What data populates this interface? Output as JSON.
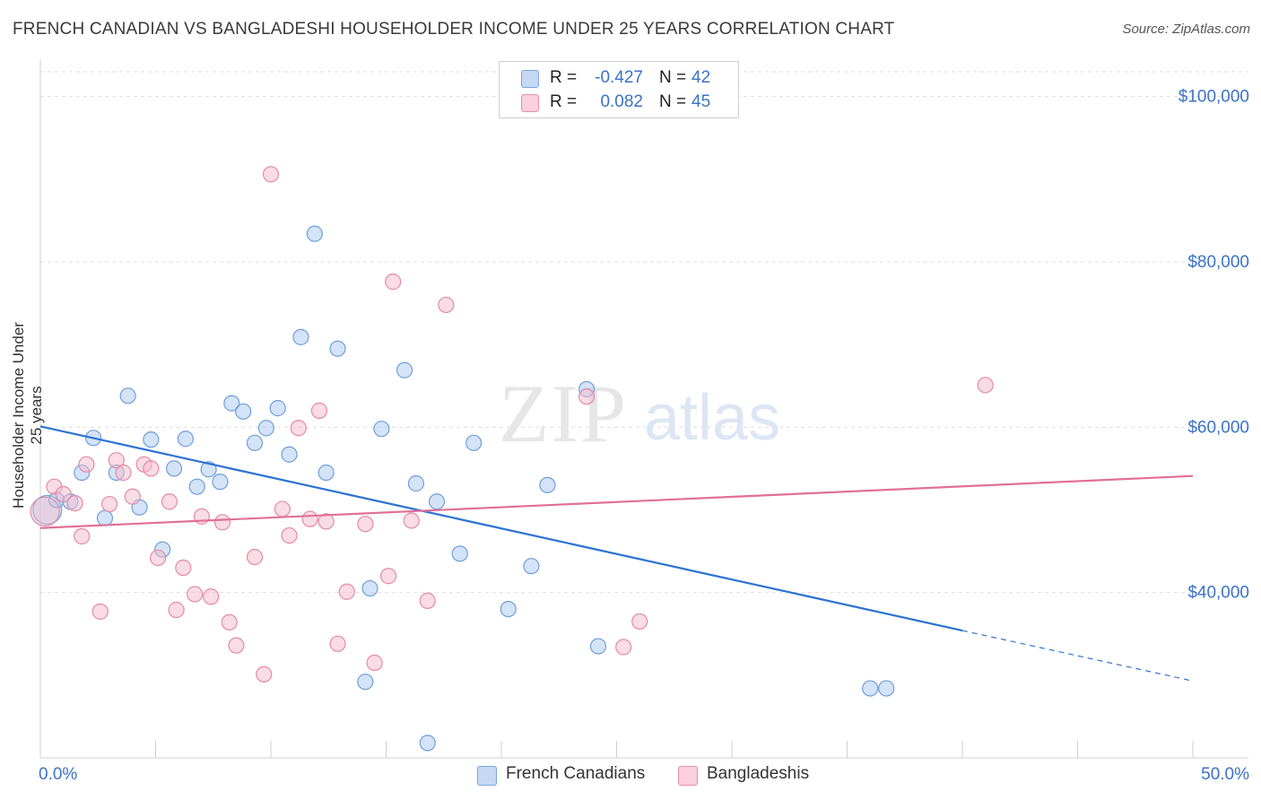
{
  "title": "FRENCH CANADIAN VS BANGLADESHI HOUSEHOLDER INCOME UNDER 25 YEARS CORRELATION CHART",
  "source": "Source: ZipAtlas.com",
  "watermark": {
    "zip": "ZIP",
    "atlas": "atlas"
  },
  "legend": {
    "rows": [
      {
        "r_label": "R =",
        "r_value": "-0.427",
        "n_label": "N =",
        "n_value": "42",
        "color": "#a9c7ef"
      },
      {
        "r_label": "R =",
        "r_value": "0.082",
        "n_label": "N =",
        "n_value": "45",
        "color": "#f5b9cb"
      }
    ]
  },
  "bottom_legend": [
    {
      "label": "French Canadians",
      "color": "#a9c7ef"
    },
    {
      "label": "Bangladeshis",
      "color": "#f5b9cb"
    }
  ],
  "chart_data": {
    "type": "scatter",
    "title": "FRENCH CANADIAN VS BANGLADESHI HOUSEHOLDER INCOME UNDER 25 YEARS CORRELATION CHART",
    "xlabel": "",
    "ylabel": "Householder Income Under 25 years",
    "xlim": [
      0,
      50
    ],
    "ylim": [
      20000,
      103000
    ],
    "x_tick_labels": [
      "0.0%",
      "50.0%"
    ],
    "y_ticks": [
      40000,
      60000,
      80000,
      100000
    ],
    "y_tick_labels": [
      "$40,000",
      "$60,000",
      "$80,000",
      "$100,000"
    ],
    "grid": true,
    "series": [
      {
        "name": "French Canadians",
        "color": "#a9c7ef",
        "stroke": "#6e9fdc",
        "line_color": "#2f73d1",
        "trend": {
          "x0": 0,
          "y0": 60100,
          "x1": 40,
          "y1": 35400,
          "dash_x1": 50,
          "dash_y1": 29300
        },
        "points": [
          [
            0.3,
            50000
          ],
          [
            0.7,
            51200
          ],
          [
            1.3,
            51000
          ],
          [
            1.8,
            54500
          ],
          [
            2.3,
            58700
          ],
          [
            2.8,
            49000
          ],
          [
            3.3,
            54500
          ],
          [
            3.8,
            63800
          ],
          [
            4.3,
            50300
          ],
          [
            4.8,
            58500
          ],
          [
            5.3,
            45200
          ],
          [
            5.8,
            55000
          ],
          [
            6.3,
            58600
          ],
          [
            6.8,
            52800
          ],
          [
            7.3,
            54900
          ],
          [
            7.8,
            53400
          ],
          [
            8.3,
            62900
          ],
          [
            8.8,
            61900
          ],
          [
            9.3,
            58100
          ],
          [
            9.8,
            59900
          ],
          [
            10.3,
            62300
          ],
          [
            10.8,
            56700
          ],
          [
            11.3,
            70900
          ],
          [
            11.9,
            83400
          ],
          [
            12.4,
            54500
          ],
          [
            12.9,
            69500
          ],
          [
            14.1,
            29200
          ],
          [
            14.3,
            40500
          ],
          [
            14.8,
            59800
          ],
          [
            15.8,
            66900
          ],
          [
            16.3,
            53200
          ],
          [
            16.8,
            21800
          ],
          [
            17.2,
            51000
          ],
          [
            18.2,
            44700
          ],
          [
            18.8,
            58100
          ],
          [
            20.3,
            38000
          ],
          [
            21.3,
            43200
          ],
          [
            22.0,
            53000
          ],
          [
            23.7,
            64600
          ],
          [
            24.2,
            33500
          ],
          [
            36.0,
            28400
          ],
          [
            36.7,
            28400
          ]
        ]
      },
      {
        "name": "Bangladeshis",
        "color": "#f5b9cb",
        "stroke": "#e48aa6",
        "line_color": "#e07098",
        "trend": {
          "x0": 0,
          "y0": 47800,
          "x1": 50,
          "y1": 54100
        },
        "points": [
          [
            0.2,
            49800
          ],
          [
            0.6,
            52800
          ],
          [
            1.0,
            51900
          ],
          [
            1.5,
            50800
          ],
          [
            1.8,
            46800
          ],
          [
            2.0,
            55500
          ],
          [
            2.6,
            37700
          ],
          [
            3.0,
            50700
          ],
          [
            3.3,
            56000
          ],
          [
            3.6,
            54500
          ],
          [
            4.0,
            51600
          ],
          [
            4.5,
            55500
          ],
          [
            4.8,
            55000
          ],
          [
            5.1,
            44200
          ],
          [
            5.6,
            51000
          ],
          [
            5.9,
            37900
          ],
          [
            6.2,
            43000
          ],
          [
            6.7,
            39800
          ],
          [
            7.0,
            49200
          ],
          [
            7.4,
            39500
          ],
          [
            7.9,
            48500
          ],
          [
            8.2,
            36400
          ],
          [
            8.5,
            33600
          ],
          [
            9.3,
            44300
          ],
          [
            9.7,
            30100
          ],
          [
            10.0,
            90600
          ],
          [
            10.5,
            50100
          ],
          [
            10.8,
            46900
          ],
          [
            11.2,
            59900
          ],
          [
            11.7,
            48900
          ],
          [
            12.1,
            62000
          ],
          [
            12.4,
            48600
          ],
          [
            12.9,
            33800
          ],
          [
            13.3,
            40100
          ],
          [
            14.1,
            48300
          ],
          [
            14.5,
            31500
          ],
          [
            15.1,
            42000
          ],
          [
            15.3,
            77600
          ],
          [
            16.1,
            48700
          ],
          [
            16.8,
            39000
          ],
          [
            17.6,
            74800
          ],
          [
            23.7,
            63700
          ],
          [
            25.3,
            33400
          ],
          [
            26.0,
            36500
          ],
          [
            41.0,
            65100
          ]
        ]
      }
    ]
  }
}
